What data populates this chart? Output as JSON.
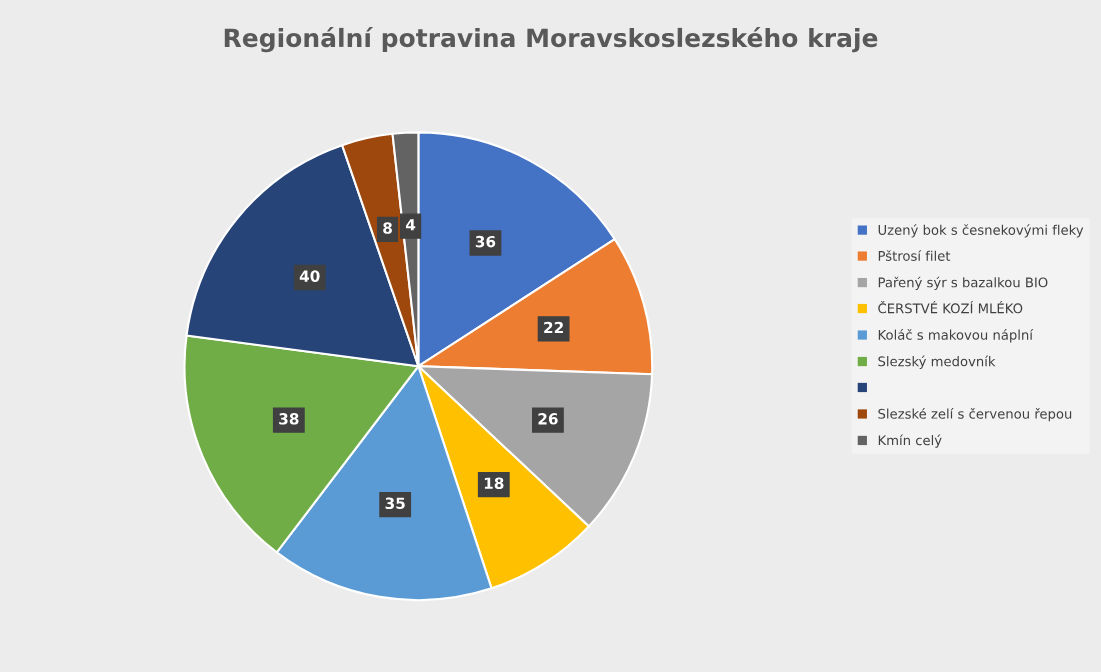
{
  "chart_data": {
    "type": "pie",
    "title": "Regionální potravina Moravskoslezského kraje",
    "categories": [
      "Uzený bok s česnekovými fleky",
      "Pštrosí filet",
      "Pařený sýr s bazalkou BIO",
      "ČERSTVÉ KOZÍ MLÉKO",
      "Koláč s makovou náplní",
      "Slezský medovník",
      null,
      "Slezské zelí s červenou řepou",
      "Kmín celý"
    ],
    "values": [
      36,
      22,
      26,
      18,
      35,
      38,
      40,
      8,
      4
    ],
    "colors": [
      "#4472c4",
      "#ed7d31",
      "#a5a5a5",
      "#ffc000",
      "#5b9bd5",
      "#70ad47",
      "#264478",
      "#9e480e",
      "#636363"
    ],
    "data_labels": true,
    "legend": "right"
  }
}
